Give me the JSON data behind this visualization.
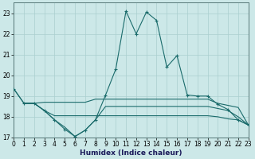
{
  "xlabel": "Humidex (Indice chaleur)",
  "ylabel": "",
  "bg_color": "#cce8e8",
  "grid_color": "#aacfcf",
  "line_color": "#1a6b6b",
  "xlim": [
    0,
    23
  ],
  "ylim": [
    17,
    23.5
  ],
  "yticks": [
    17,
    18,
    19,
    20,
    21,
    22,
    23
  ],
  "xticks": [
    0,
    1,
    2,
    3,
    4,
    5,
    6,
    7,
    8,
    9,
    10,
    11,
    12,
    13,
    14,
    15,
    16,
    17,
    18,
    19,
    20,
    21,
    22,
    23
  ],
  "main_x": [
    0,
    1,
    2,
    3,
    4,
    5,
    6,
    7,
    8,
    9,
    10,
    11,
    12,
    13,
    14,
    15,
    16,
    17,
    18,
    19,
    20,
    21,
    22,
    23
  ],
  "main_y": [
    19.35,
    18.65,
    18.65,
    18.3,
    17.85,
    17.4,
    17.05,
    17.35,
    17.85,
    19.05,
    20.3,
    23.1,
    22.0,
    23.05,
    22.65,
    20.4,
    20.95,
    19.05,
    19.0,
    19.0,
    18.6,
    18.35,
    17.85,
    17.6
  ],
  "line2_x": [
    0,
    1,
    2,
    3,
    4,
    5,
    6,
    7,
    8,
    9,
    10,
    11,
    12,
    13,
    14,
    15,
    16,
    17,
    18,
    19,
    20,
    21,
    22,
    23
  ],
  "line2_y": [
    19.35,
    18.65,
    18.65,
    18.7,
    18.7,
    18.7,
    18.7,
    18.7,
    18.85,
    18.85,
    18.85,
    18.85,
    18.85,
    18.85,
    18.85,
    18.85,
    18.85,
    18.85,
    18.85,
    18.85,
    18.65,
    18.55,
    18.45,
    17.6
  ],
  "line3_x": [
    1,
    2,
    3,
    4,
    5,
    6,
    7,
    8,
    9,
    10,
    11,
    12,
    13,
    14,
    15,
    16,
    17,
    18,
    19,
    20,
    21,
    22,
    23
  ],
  "line3_y": [
    18.65,
    18.65,
    18.3,
    18.05,
    18.05,
    18.05,
    18.05,
    18.05,
    18.05,
    18.05,
    18.05,
    18.05,
    18.05,
    18.05,
    18.05,
    18.05,
    18.05,
    18.05,
    18.05,
    18.0,
    17.9,
    17.85,
    17.6
  ],
  "line4_x": [
    1,
    2,
    3,
    4,
    5,
    6,
    7,
    8,
    9,
    10,
    11,
    12,
    13,
    14,
    15,
    16,
    17,
    18,
    19,
    20,
    21,
    22,
    23
  ],
  "line4_y": [
    18.65,
    18.65,
    18.3,
    17.85,
    17.5,
    17.05,
    17.35,
    17.85,
    18.5,
    18.5,
    18.5,
    18.5,
    18.5,
    18.5,
    18.5,
    18.5,
    18.5,
    18.5,
    18.5,
    18.4,
    18.3,
    18.0,
    17.6
  ]
}
